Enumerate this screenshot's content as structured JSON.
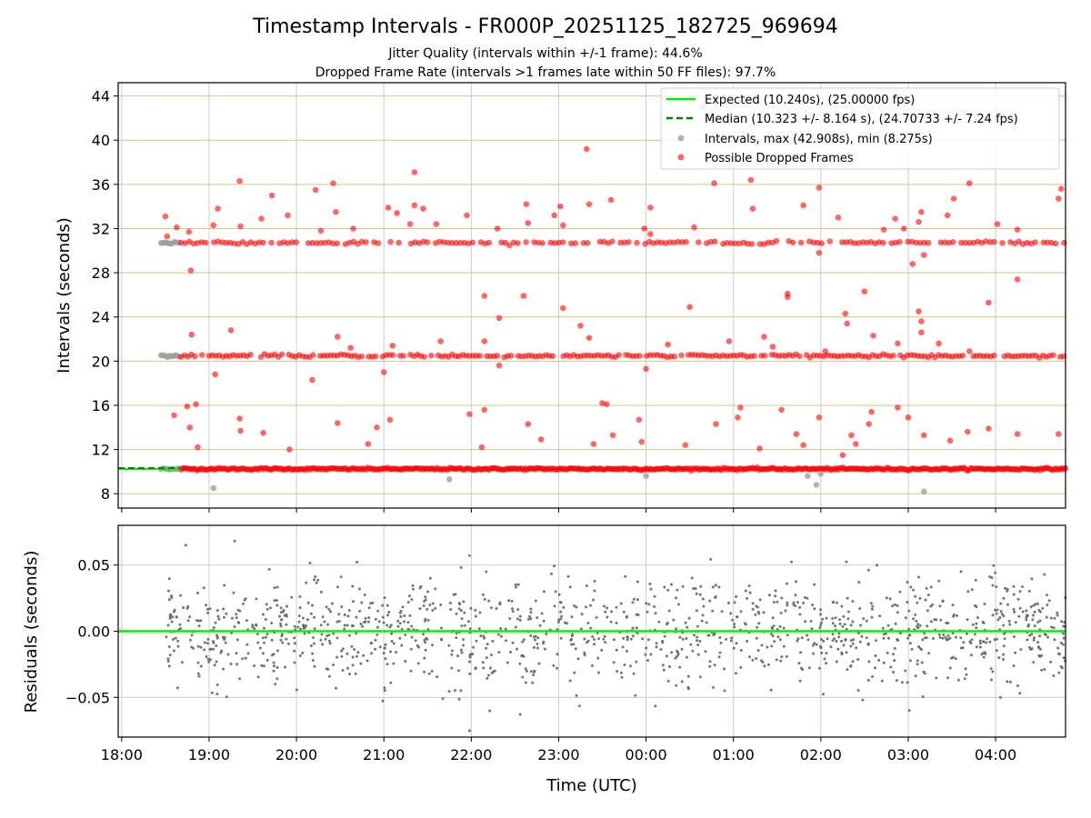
{
  "chart_data": {
    "type": "scatter",
    "title": "Timestamp Intervals - FR000P_20251125_182725_969694",
    "subtitle_1": "Jitter Quality (intervals within +/-1 frame): 44.6%",
    "subtitle_2": "Dropped Frame Rate (intervals >1 frames late within 50 FF files): 97.7%",
    "colors": {
      "expected": "#00ee00",
      "median": "#008000",
      "intervals": "#999999",
      "dropped": "#ff0000",
      "residual": "#666666",
      "hgrid": "#d4c48a",
      "vgrid": "#cccccc"
    },
    "top_panel": {
      "ylabel": "Intervals (seconds)",
      "ylim": [
        6.7,
        45.2
      ],
      "yticks": [
        8,
        12,
        16,
        20,
        24,
        28,
        32,
        36,
        40,
        44
      ],
      "expected_interval": 10.24,
      "median_interval": 10.323,
      "gray_end_hour": 18.67,
      "red_start_hour": 18.68,
      "clusters": [
        10.24,
        20.48,
        30.72
      ],
      "outliers": [
        [
          18.5,
          33.1
        ],
        [
          18.52,
          31.3
        ],
        [
          18.6,
          15.1
        ],
        [
          18.63,
          32.1
        ],
        [
          18.75,
          15.9
        ],
        [
          18.77,
          31.7
        ],
        [
          18.79,
          28.2
        ],
        [
          18.8,
          22.4
        ],
        [
          18.78,
          14.0
        ],
        [
          18.85,
          16.1
        ],
        [
          18.87,
          12.2
        ],
        [
          19.05,
          32.3
        ],
        [
          19.07,
          18.8
        ],
        [
          19.1,
          33.8
        ],
        [
          19.25,
          22.8
        ],
        [
          19.35,
          36.3
        ],
        [
          19.36,
          32.2
        ],
        [
          19.35,
          14.8
        ],
        [
          19.36,
          13.7
        ],
        [
          19.6,
          32.9
        ],
        [
          19.62,
          13.5
        ],
        [
          19.72,
          35.0
        ],
        [
          19.9,
          33.2
        ],
        [
          19.92,
          12.0
        ],
        [
          20.18,
          18.3
        ],
        [
          20.22,
          35.5
        ],
        [
          20.28,
          31.8
        ],
        [
          20.42,
          36.1
        ],
        [
          20.45,
          33.5
        ],
        [
          20.47,
          22.2
        ],
        [
          20.47,
          14.4
        ],
        [
          20.62,
          21.2
        ],
        [
          20.65,
          32.0
        ],
        [
          20.82,
          12.5
        ],
        [
          20.92,
          14.0
        ],
        [
          21.0,
          19.0
        ],
        [
          21.05,
          33.9
        ],
        [
          21.07,
          14.7
        ],
        [
          21.1,
          21.4
        ],
        [
          21.15,
          33.4
        ],
        [
          21.3,
          32.4
        ],
        [
          21.35,
          37.1
        ],
        [
          21.35,
          34.1
        ],
        [
          21.45,
          33.8
        ],
        [
          21.6,
          32.4
        ],
        [
          21.65,
          21.8
        ],
        [
          21.95,
          33.2
        ],
        [
          21.98,
          15.2
        ],
        [
          22.15,
          25.9
        ],
        [
          22.15,
          21.8
        ],
        [
          22.15,
          15.6
        ],
        [
          22.3,
          32.0
        ],
        [
          22.32,
          23.9
        ],
        [
          22.32,
          19.6
        ],
        [
          22.6,
          25.9
        ],
        [
          22.63,
          34.2
        ],
        [
          22.65,
          32.5
        ],
        [
          22.65,
          14.3
        ],
        [
          22.95,
          33.2
        ],
        [
          23.02,
          34.0
        ],
        [
          23.05,
          24.8
        ],
        [
          23.05,
          32.3
        ],
        [
          23.25,
          23.2
        ],
        [
          23.32,
          39.2
        ],
        [
          23.35,
          34.2
        ],
        [
          23.35,
          22.1
        ],
        [
          23.4,
          12.5
        ],
        [
          23.5,
          16.2
        ],
        [
          23.55,
          16.1
        ],
        [
          23.6,
          34.6
        ],
        [
          23.62,
          13.3
        ],
        [
          23.92,
          14.7
        ],
        [
          23.95,
          12.7
        ],
        [
          23.98,
          32.0
        ],
        [
          24.0,
          19.3
        ],
        [
          24.05,
          33.9
        ],
        [
          24.05,
          31.5
        ],
        [
          24.25,
          21.5
        ],
        [
          24.45,
          12.4
        ],
        [
          24.5,
          24.9
        ],
        [
          24.55,
          32.1
        ],
        [
          24.65,
          43.0
        ],
        [
          24.78,
          36.1
        ],
        [
          24.8,
          14.3
        ],
        [
          25.05,
          14.9
        ],
        [
          25.08,
          15.8
        ],
        [
          25.2,
          36.4
        ],
        [
          25.22,
          33.8
        ],
        [
          25.35,
          22.2
        ],
        [
          25.45,
          21.3
        ],
        [
          25.55,
          15.6
        ],
        [
          25.62,
          26.1
        ],
        [
          25.62,
          25.8
        ],
        [
          25.72,
          13.4
        ],
        [
          25.8,
          12.4
        ],
        [
          25.8,
          34.1
        ],
        [
          25.98,
          35.7
        ],
        [
          25.98,
          29.8
        ],
        [
          25.98,
          14.9
        ],
        [
          26.05,
          20.9
        ],
        [
          26.2,
          33.0
        ],
        [
          26.25,
          11.5
        ],
        [
          26.28,
          24.3
        ],
        [
          26.3,
          23.4
        ],
        [
          26.35,
          13.3
        ],
        [
          26.5,
          26.3
        ],
        [
          26.55,
          14.3
        ],
        [
          26.58,
          15.4
        ],
        [
          26.6,
          22.3
        ],
        [
          26.72,
          31.9
        ],
        [
          26.85,
          32.9
        ],
        [
          26.88,
          21.6
        ],
        [
          26.88,
          15.8
        ],
        [
          27.0,
          14.9
        ],
        [
          27.05,
          28.8
        ],
        [
          27.12,
          32.6
        ],
        [
          27.12,
          24.5
        ],
        [
          27.15,
          23.6
        ],
        [
          27.15,
          22.6
        ],
        [
          27.18,
          29.6
        ],
        [
          27.18,
          13.3
        ],
        [
          27.35,
          21.6
        ],
        [
          27.45,
          33.2
        ],
        [
          27.48,
          12.8
        ],
        [
          27.52,
          34.7
        ],
        [
          27.7,
          36.1
        ],
        [
          27.7,
          20.9
        ],
        [
          27.68,
          13.6
        ],
        [
          27.92,
          25.3
        ],
        [
          27.92,
          13.9
        ],
        [
          28.02,
          32.4
        ],
        [
          28.25,
          31.9
        ],
        [
          28.25,
          27.4
        ],
        [
          28.25,
          13.4
        ],
        [
          28.72,
          34.7
        ],
        [
          28.75,
          35.6
        ],
        [
          28.72,
          13.4
        ],
        [
          27.15,
          33.5
        ],
        [
          26.95,
          32.0
        ],
        [
          26.4,
          12.5
        ],
        [
          25.3,
          12.1
        ],
        [
          24.95,
          21.8
        ],
        [
          22.8,
          12.9
        ],
        [
          22.12,
          12.2
        ]
      ],
      "gray_outliers": [
        [
          19.05,
          8.5
        ],
        [
          21.75,
          9.3
        ],
        [
          24.0,
          9.6
        ],
        [
          25.85,
          9.6
        ],
        [
          25.95,
          8.8
        ],
        [
          26.0,
          9.8
        ],
        [
          27.18,
          8.2
        ]
      ]
    },
    "bottom_panel": {
      "ylabel": "Residuals (seconds)",
      "ylim": [
        -0.08,
        0.08
      ],
      "yticks": [
        0.05,
        0.0,
        -0.05
      ],
      "ytick_labels": [
        "0.05",
        "0.00",
        "−0.05"
      ],
      "zero_line": 0.0,
      "x_start_hour": 18.5
    },
    "xaxis": {
      "xlabel": "Time (UTC)",
      "xlim": [
        17.96,
        28.8
      ],
      "xticks": [
        18,
        19,
        20,
        21,
        22,
        23,
        24,
        25,
        26,
        27,
        28
      ],
      "xtick_labels": [
        "18:00",
        "19:00",
        "20:00",
        "21:00",
        "22:00",
        "23:00",
        "00:00",
        "01:00",
        "02:00",
        "03:00",
        "04:00"
      ]
    },
    "legend": {
      "placement": "top-right",
      "entries": [
        {
          "label": "Expected (10.240s), (25.00000 fps)",
          "kind": "line-solid",
          "color": "#00ee00"
        },
        {
          "label": "Median (10.323 +/- 8.164 s), (24.70733 +/- 7.24 fps)",
          "kind": "line-dashed",
          "color": "#008000"
        },
        {
          "label": "Intervals, max (42.908s), min (8.275s)",
          "kind": "marker",
          "color": "#999999"
        },
        {
          "label": "Possible Dropped Frames",
          "kind": "marker",
          "color": "#ff0000"
        }
      ]
    }
  }
}
